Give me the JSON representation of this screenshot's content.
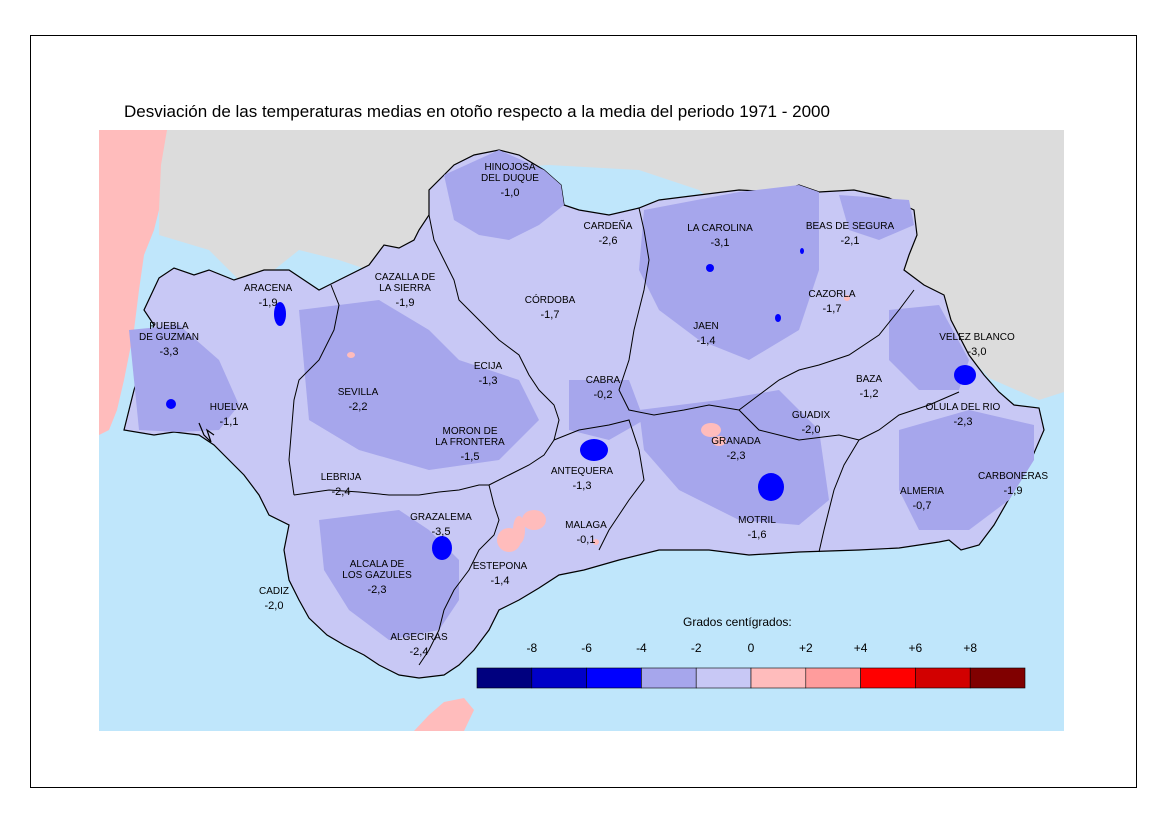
{
  "title": "Desviación de las temperaturas medias en otoño respecto a la media del periodo 1971 - 2000",
  "colors": {
    "sea": "#bfe6fb",
    "spain": "#dcdcdc",
    "portugal_morocco": "#ffbcbc",
    "region_main": "#c8c8f5",
    "region_dark": "#a6a6ec",
    "border": "#000000"
  },
  "legend": {
    "title": "Grados centígrados:",
    "ticks": [
      "-8",
      "-6",
      "-4",
      "-2",
      "0",
      "+2",
      "+4",
      "+6",
      "+8"
    ],
    "colors": [
      "#00007f",
      "#0000c8",
      "#0000ff",
      "#a6a6ec",
      "#c8c8f5",
      "#ffbcbc",
      "#ff9c9c",
      "#ff0000",
      "#d20000",
      "#800000"
    ]
  },
  "places": [
    {
      "name": "HINOJOSA",
      "name2": "DEL DUQUE",
      "value": "-1,0"
    },
    {
      "name": "CARDEÑA",
      "value": "-2,6"
    },
    {
      "name": "LA CAROLINA",
      "value": "-3,1"
    },
    {
      "name": "BEAS DE SEGURA",
      "value": "-2,1"
    },
    {
      "name": "ARACENA",
      "value": "-1,9"
    },
    {
      "name": "CAZALLA DE",
      "name2": "LA SIERRA",
      "value": "-1,9"
    },
    {
      "name": "CÓRDOBA",
      "value": "-1,7"
    },
    {
      "name": "CAZORLA",
      "value": "-1,7"
    },
    {
      "name": "PUEBLA",
      "name2": "DE GUZMAN",
      "value": "-3,3"
    },
    {
      "name": "JAEN",
      "value": "-1,4"
    },
    {
      "name": "VELEZ BLANCO",
      "value": "-3,0"
    },
    {
      "name": "ECIJA",
      "value": "-1,3"
    },
    {
      "name": "CABRA",
      "value": "-0,2"
    },
    {
      "name": "BAZA",
      "value": "-1,2"
    },
    {
      "name": "SEVILLA",
      "value": "-2,2"
    },
    {
      "name": "HUELVA",
      "value": "-1,1"
    },
    {
      "name": "OLULA DEL RIO",
      "value": "-2,3"
    },
    {
      "name": "GUADIX",
      "value": "-2,0"
    },
    {
      "name": "MORON DE",
      "name2": "LA FRONTERA",
      "value": "-1,5"
    },
    {
      "name": "GRANADA",
      "value": "-2,3"
    },
    {
      "name": "ANTEQUERA",
      "value": "-1,3"
    },
    {
      "name": "LEBRIJA",
      "value": "-2,4"
    },
    {
      "name": "CARBONERAS",
      "value": "-1,9"
    },
    {
      "name": "ALMERIA",
      "value": "-0,7"
    },
    {
      "name": "GRAZALEMA",
      "value": "-3,5"
    },
    {
      "name": "MALAGA",
      "value": "-0,1"
    },
    {
      "name": "MOTRIL",
      "value": "-1,6"
    },
    {
      "name": "ALCALA DE",
      "name2": "LOS GAZULES",
      "value": "-2,3"
    },
    {
      "name": "ESTEPONA",
      "value": "-1,4"
    },
    {
      "name": "CADIZ",
      "value": "-2,0"
    },
    {
      "name": "ALGECIRAS",
      "value": "-2,4"
    }
  ]
}
